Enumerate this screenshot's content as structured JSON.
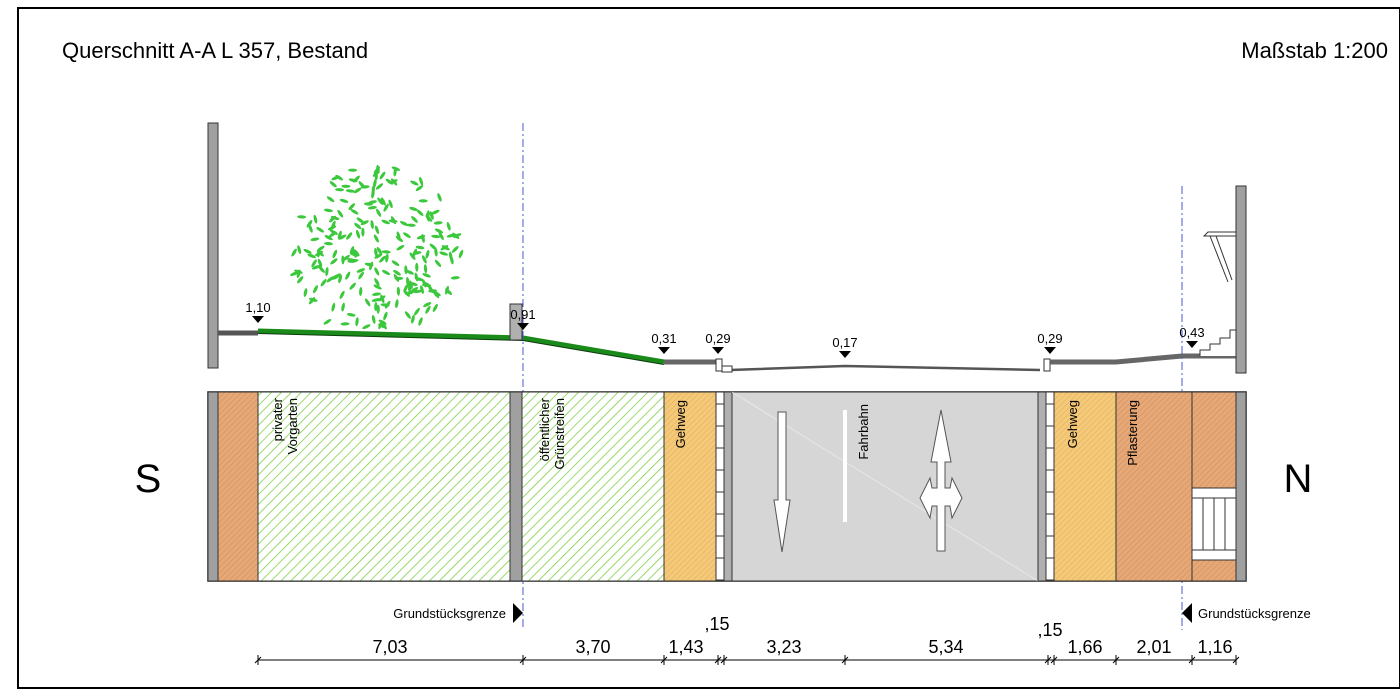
{
  "title": "Querschnitt A-A L 357, Bestand",
  "scale": "Maßstab 1:200",
  "sides": {
    "left": "S",
    "right": "N"
  },
  "elevations": [
    "1,10",
    "0,91",
    "0,31",
    "0,29",
    "0,17",
    "0,29",
    "0,43"
  ],
  "zones": {
    "vorgarten": [
      "privater",
      "Vorgarten"
    ],
    "gruenstreifen": [
      "öffentlicher",
      "Grünstreifen"
    ],
    "gehweg_left": "Gehweg",
    "fahrbahn": "Fahrbahn",
    "gehweg_right": "Gehweg",
    "pflasterung": "Pflasterung"
  },
  "boundary_label": "Grundstücksgrenze",
  "dimensions": {
    "main": [
      "7,03",
      "3,70",
      "1,43",
      "3,23",
      "5,34",
      "1,66",
      "2,01",
      "1,16"
    ],
    "curbs": [
      ",15",
      ",15"
    ]
  },
  "colors": {
    "green": "#1a8a1a",
    "leaf": "#3cc83c",
    "hatch_green": "#7fd14a",
    "gehweg": "#f5c97a",
    "pflaster": "#e6a877",
    "road": "#d6d6d6",
    "wall": "#a0a0a0"
  }
}
